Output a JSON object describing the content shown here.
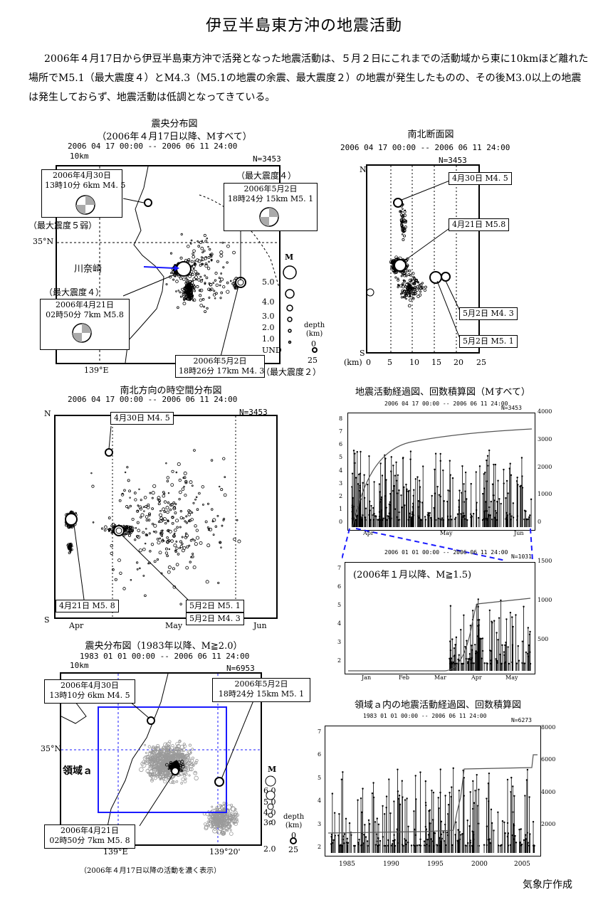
{
  "title": "伊豆半島東方沖の地震活動",
  "intro": "2006年４月17日から伊豆半島東方沖で活発となった地震活動は、５月２日にこれまでの活動域から東に10kmほど離れた場所でM5.1（最大震度４）とM4.3（M5.1の地震の余震、最大震度２）の地震が発生したものの、その後M3.0以上の地震は発生しておらず、地震活動は低調となってきている。",
  "map1": {
    "caption1": "震央分布図",
    "caption2": "（2006年４月17日以降、Mすべて）",
    "header": "2006  04  17  00:00  --  2006  06  11  24:00",
    "count": "N=3453",
    "scale": "10km",
    "lat": "35°N",
    "lon": "139°E",
    "place": "川奈崎",
    "box_a": [
      "2006年4月30日",
      "13時10分  6km   M4. 5"
    ],
    "box_a_int": "（最大震度５弱）",
    "box_b_int": "（最大震度４）",
    "box_b": [
      "2006年5月2日",
      "18時24分  15km   M5. 1"
    ],
    "box_c_int": "（最大震度４）",
    "box_c": [
      "2006年4月21日",
      "02時50分  7km   M5.8"
    ],
    "box_d": [
      "2006年5月2日",
      "18時26分  17km   M4. 3"
    ],
    "box_d_int": "（最大震度２）",
    "mag_title": "M",
    "mags": [
      "5.0",
      "4.0",
      "3.0",
      "2.0",
      "1.0",
      "UND"
    ],
    "depth_title": "depth\n(km)",
    "depths": [
      "0",
      "25"
    ]
  },
  "section": {
    "caption": "南北断面図",
    "header": "2006  04  17  00:00  --  2006  06  11  24:00",
    "count": "N=3453",
    "n": "N",
    "s": "S",
    "unit": "(km)",
    "ticks": [
      "0",
      "5",
      "10",
      "15",
      "20",
      "25"
    ],
    "labels": [
      "4月30日  M4. 5",
      "4月21日  M5.8",
      "5月2日  M4. 3",
      "5月2日  M5. 1"
    ]
  },
  "spacetime": {
    "caption": "南北方向の時空間分布図",
    "header": "2006  04  17  00:00  --  2006  06  11  24:00",
    "count": "N=3453",
    "n": "N",
    "s": "S",
    "months": [
      "Apr",
      "May",
      "Jun"
    ],
    "labels": [
      "4月30日  M4. 5",
      "4月21日  M5. 8",
      "5月2日  M5. 1",
      "5月2日  M4. 3"
    ]
  },
  "timeline1": {
    "caption": "地震活動経過図、回数積算図（Mすべて）",
    "header": "2006  04  17  00:00  --  2006  06  11  24:00",
    "count": "N=3453",
    "mticks": [
      "0",
      "1",
      "2",
      "3",
      "4",
      "5",
      "6",
      "7",
      "8"
    ],
    "cticks": [
      "0",
      "1000",
      "2000",
      "3000",
      "4000"
    ],
    "months": [
      "Apr",
      "May",
      "Jun"
    ]
  },
  "timeline2": {
    "header": "2006  01  01  00:00  --  2006  06  11  24:00",
    "count": "N=1031",
    "note": "(2006年１月以降、M≧1.5)",
    "mticks": [
      "2",
      "3",
      "4",
      "5",
      "6",
      "7"
    ],
    "cticks": [
      "500",
      "1000",
      "1500"
    ],
    "months": [
      "Jan",
      "Feb",
      "Mar",
      "Apr",
      "May"
    ]
  },
  "map2": {
    "caption": "震央分布図（1983年以降、M≧2.0）",
    "header": "1983  01  01  00:00  --  2006  06  11  24:00",
    "count": "N=6953",
    "scale": "10km",
    "lat": "35°N",
    "lon1": "139°E",
    "lon2": "139°20'",
    "region": "領域ａ",
    "box_a": [
      "2006年4月30日",
      "13時10分  6km   M4. 5"
    ],
    "box_b": [
      "2006年5月2日",
      "18時24分  15km   M5. 1"
    ],
    "box_c": [
      "2006年4月21日",
      "02時50分  7km   M5. 8"
    ],
    "mag_title": "M",
    "mags": [
      "6.0",
      "5.0",
      "4.0",
      "3.0",
      "2.0"
    ],
    "depth_title": "depth\n(km)",
    "depths": [
      "0",
      "25"
    ],
    "note": "（2006年４月17日以降の活動を濃く表示）"
  },
  "timeline3": {
    "caption": "領域ａ内の地震活動経過図、回数積算図",
    "header": "1983  01  01  00:00  --  2006  06  11  24:00",
    "count": "N=6273",
    "mticks": [
      "2",
      "3",
      "4",
      "5",
      "6",
      "7"
    ],
    "cticks": [
      "2000",
      "4000",
      "6000",
      "8000"
    ],
    "years": [
      "1985",
      "1990",
      "1995",
      "2000",
      "2005"
    ]
  },
  "footer": "気象庁作成",
  "colors": {
    "accent_blue": "#1a1aff",
    "shade": "#9a9a9a"
  }
}
